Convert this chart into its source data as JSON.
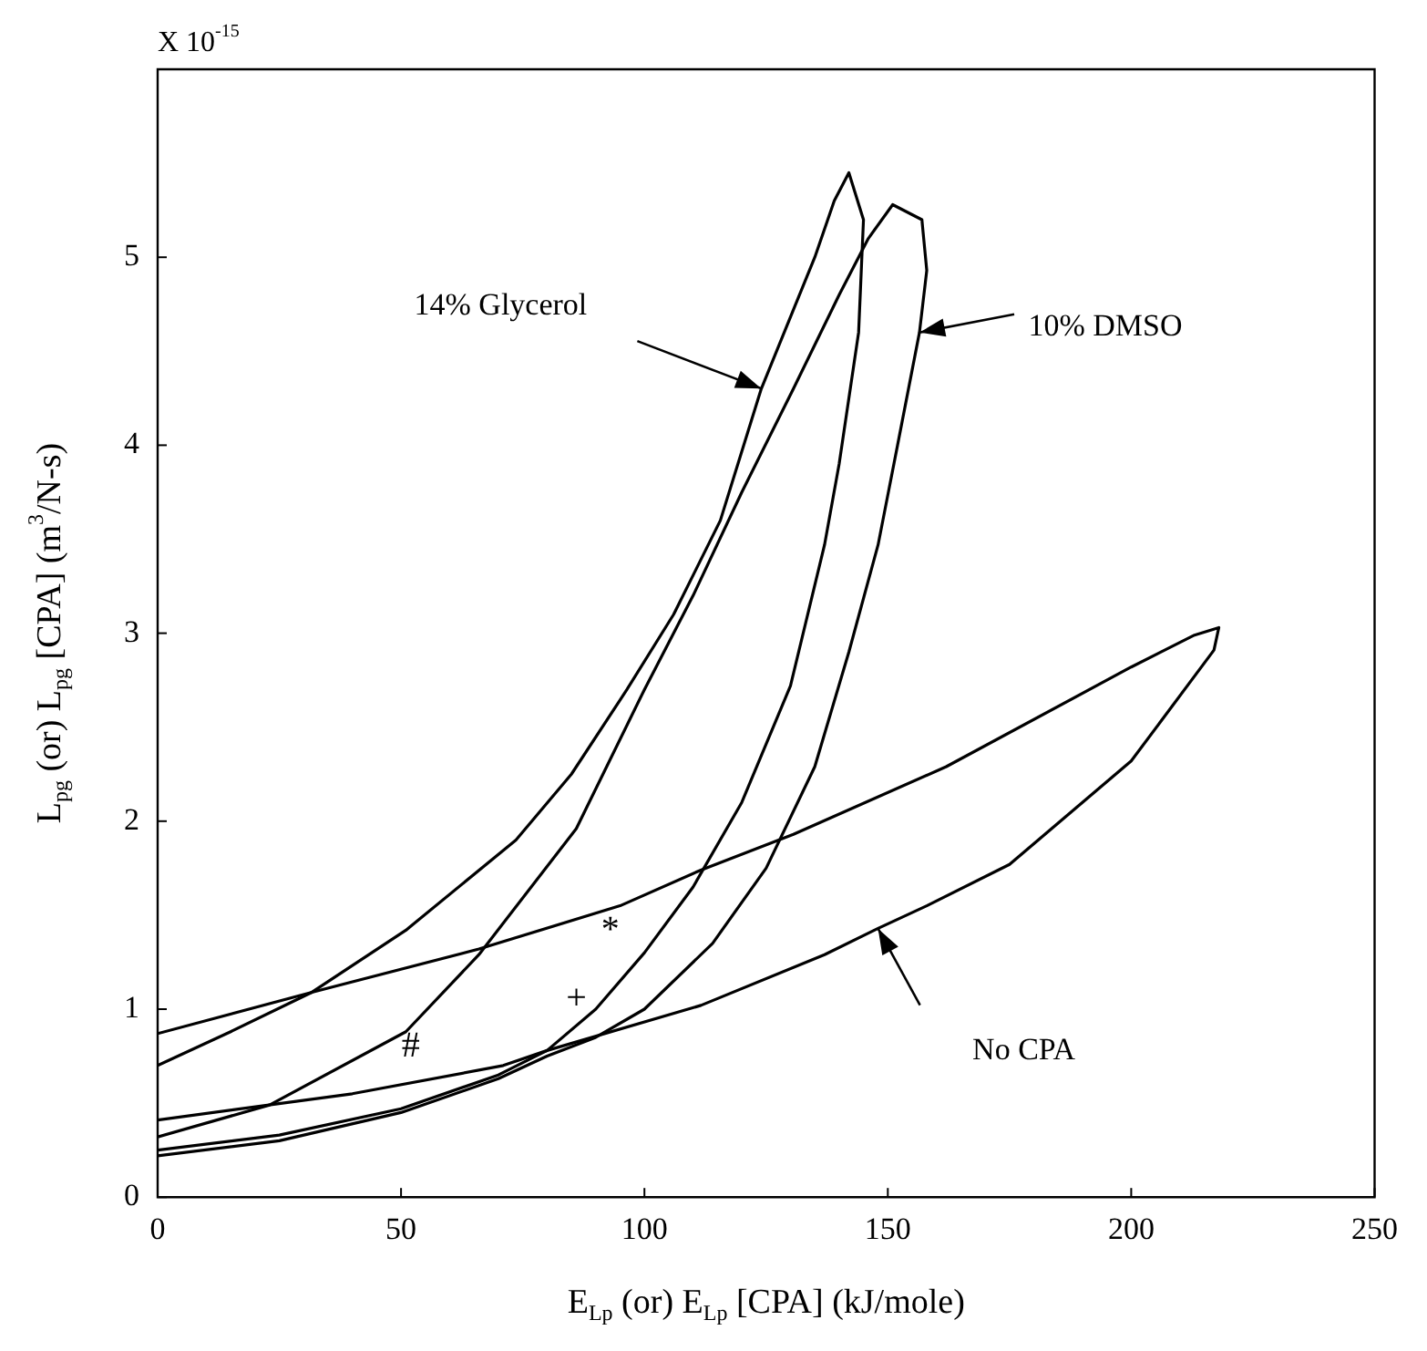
{
  "chart_data": {
    "type": "line",
    "xlabel": "E$_{Lp}$ (or) E$_{Lp}$ [CPA] (kJ/mole)",
    "ylabel": "L$_{pg}$ (or) L$_{pg}$ [CPA] (m$^{3}$/N-s)",
    "xlim": [
      0,
      250
    ],
    "xticks": [
      0,
      50,
      100,
      150,
      200,
      250
    ],
    "ylim": [
      0,
      6
    ],
    "yticks": [
      0,
      1,
      2,
      3,
      4,
      5
    ],
    "grid": false,
    "legend": false,
    "marker": "none",
    "series": [
      {
        "color": "#000000",
        "x": [
          0,
          15,
          31.7,
          51,
          73.6,
          85,
          96.4,
          106,
          115.6,
          124,
          130.6,
          135,
          139,
          142,
          145,
          144,
          140,
          137,
          130,
          120,
          110,
          100,
          90,
          80,
          70,
          50,
          25,
          0
        ],
        "values": [
          0.7,
          0.88,
          1.09,
          1.42,
          1.9,
          2.25,
          2.7,
          3.1,
          3.6,
          4.3,
          4.72,
          5.0,
          5.3,
          5.45,
          5.2,
          4.6,
          3.9,
          3.47,
          2.72,
          2.1,
          1.65,
          1.3,
          1.0,
          0.78,
          0.65,
          0.47,
          0.33,
          0.25
        ]
      },
      {
        "color": "#000000",
        "x": [
          0,
          23,
          51,
          66,
          86,
          100,
          110,
          120,
          130.6,
          140,
          146,
          151,
          157,
          158,
          156.5,
          152,
          148,
          142,
          135,
          125,
          114,
          100,
          90,
          80,
          70,
          50,
          25,
          0
        ],
        "values": [
          0.32,
          0.49,
          0.88,
          1.29,
          1.96,
          2.7,
          3.2,
          3.75,
          4.3,
          4.8,
          5.1,
          5.28,
          5.2,
          4.93,
          4.6,
          4.0,
          3.47,
          2.9,
          2.29,
          1.75,
          1.35,
          1.0,
          0.85,
          0.75,
          0.63,
          0.45,
          0.3,
          0.22
        ]
      },
      {
        "color": "#000000",
        "x": [
          0,
          31.7,
          66,
          95,
          111.6,
          130.6,
          162,
          200,
          213,
          218,
          217,
          200,
          175,
          158,
          148,
          137,
          111.6,
          80,
          71,
          40,
          0
        ],
        "values": [
          0.87,
          1.09,
          1.32,
          1.55,
          1.74,
          1.93,
          2.29,
          2.82,
          2.99,
          3.03,
          2.91,
          2.32,
          1.77,
          1.55,
          1.43,
          1.29,
          1.02,
          0.78,
          0.7,
          0.55,
          0.41
        ]
      }
    ],
    "annotations": [
      "X 10$^{-15}$",
      "+",
      "#",
      "14% Glycerol",
      {
        "text": "10% DMSO",
        "x": 156.5,
        "y": 4.6
      },
      "No CPA",
      {
        "text": "*",
        "x": 93,
        "y": 1.5
      }
    ]
  }
}
